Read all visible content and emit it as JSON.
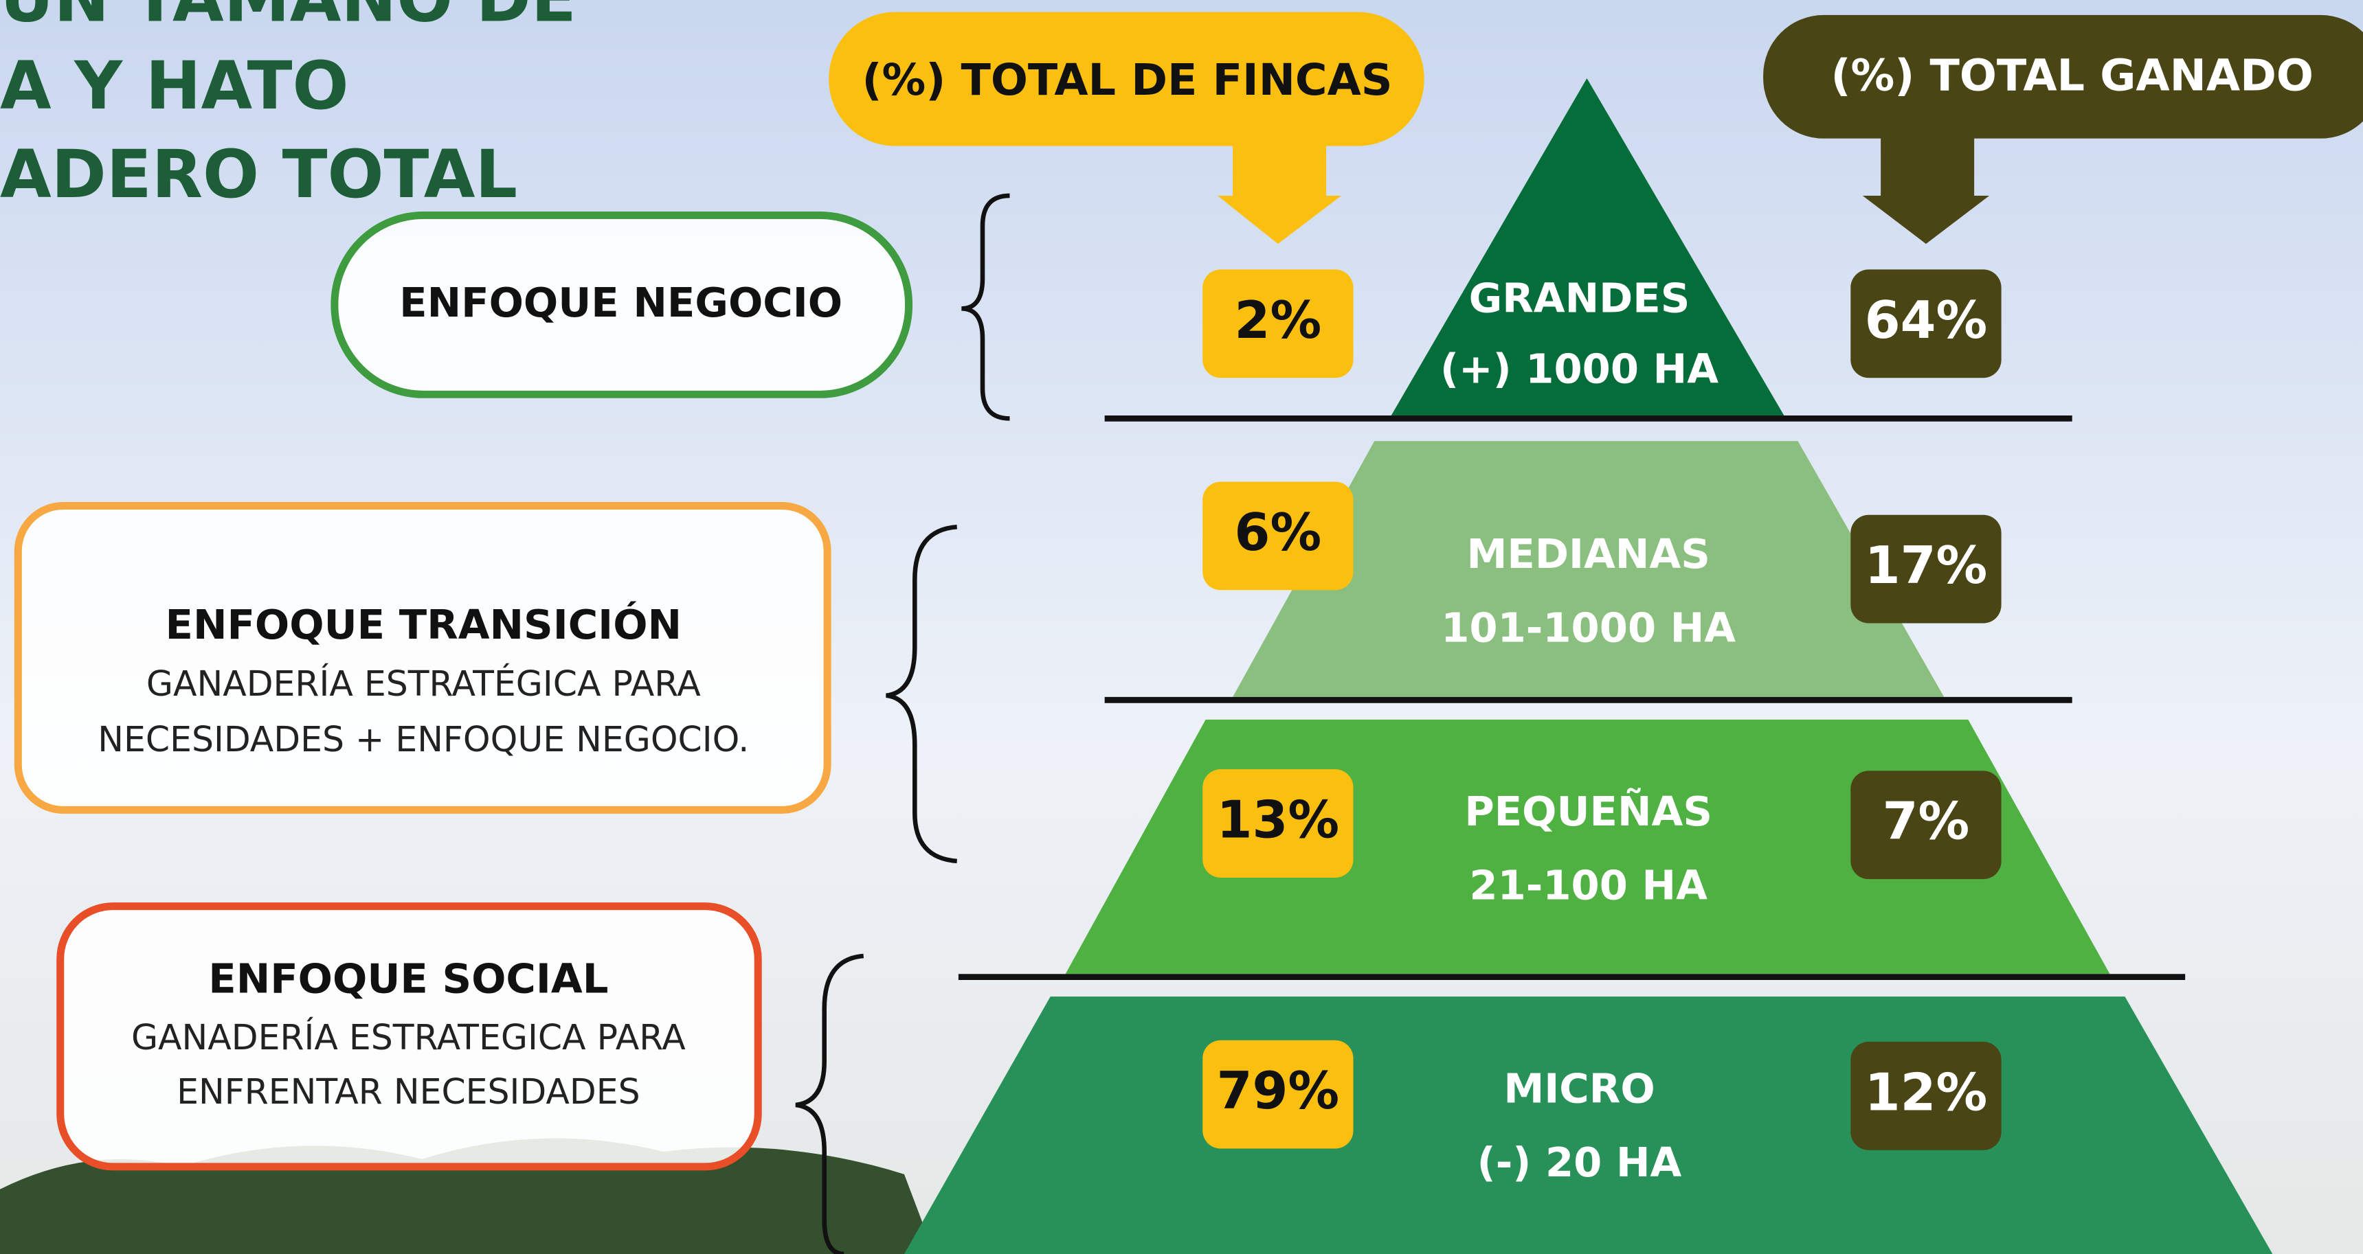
{
  "header": {
    "title_lines": [
      "UN TAMAÑO DE",
      "A Y HATO",
      "ADERO TOTAL"
    ]
  },
  "columns": {
    "fincas": "(%) TOTAL DE FINCAS",
    "ganado": "(%) TOTAL GANADO"
  },
  "tiers": [
    {
      "name": "GRANDES",
      "range": "(+) 1000 HA",
      "fincas": "2%",
      "ganado": "64%"
    },
    {
      "name": "MEDIANAS",
      "range": "101-1000 HA",
      "fincas": "6%",
      "ganado": "17%"
    },
    {
      "name": "PEQUEÑAS",
      "range": "21-100 HA",
      "fincas": "13%",
      "ganado": "7%"
    },
    {
      "name": "MICRO",
      "range": "(-) 20 HA",
      "fincas": "79%",
      "ganado": "12%"
    }
  ],
  "approaches": [
    {
      "title": "ENFOQUE NEGOCIO",
      "lines": []
    },
    {
      "title": "ENFOQUE TRANSICIÓN",
      "lines": [
        "GANADERÍA ESTRATÉGICA PARA",
        "NECESIDADES + ENFOQUE NEGOCIO."
      ]
    },
    {
      "title": "ENFOQUE SOCIAL",
      "lines": [
        "GANADERÍA ESTRATEGICA PARA",
        "ENFRENTAR NECESIDADES"
      ]
    }
  ]
}
